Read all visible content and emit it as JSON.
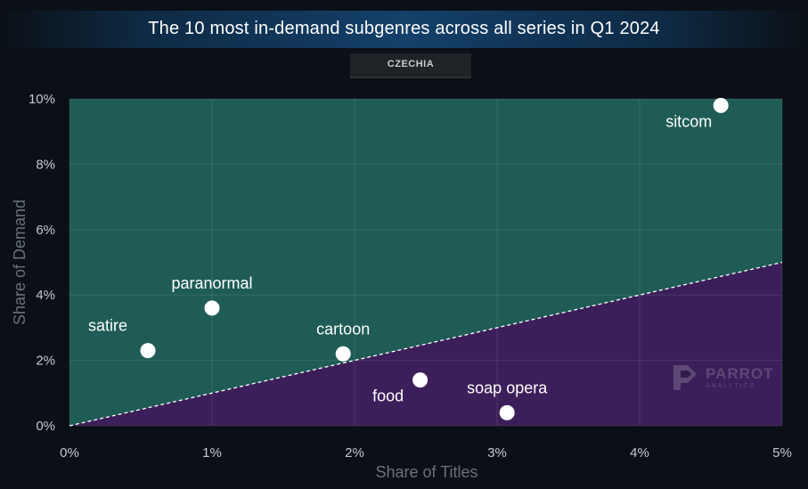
{
  "title": "The 10 most in-demand subgenres across all series in Q1 2024",
  "region": "CZECHIA",
  "watermark": {
    "name": "PARROT",
    "sub": "ANALYTICS"
  },
  "colors": {
    "above_parity": "#1f5c55",
    "below_parity": "#3c1f5a",
    "point": "#ffffff",
    "parity_line": "#ffffff"
  },
  "chart_data": {
    "type": "scatter",
    "title": "The 10 most in-demand subgenres across all series in Q1 2024",
    "subtitle": "CZECHIA",
    "xlabel": "Share of Titles",
    "ylabel": "Share of Demand",
    "xlim": [
      0,
      5
    ],
    "ylim": [
      0,
      10
    ],
    "x_ticks": [
      "0%",
      "1%",
      "2%",
      "3%",
      "4%",
      "5%"
    ],
    "y_ticks": [
      "0%",
      "2%",
      "4%",
      "6%",
      "8%",
      "10%"
    ],
    "grid": true,
    "reference_line": {
      "from": [
        0,
        0
      ],
      "to": [
        5,
        5
      ],
      "style": "dashed"
    },
    "points": [
      {
        "label": "sitcom",
        "x": 4.57,
        "y": 9.8,
        "label_pos": "below-left"
      },
      {
        "label": "paranormal",
        "x": 1.0,
        "y": 3.6,
        "label_pos": "above"
      },
      {
        "label": "satire",
        "x": 0.55,
        "y": 2.3,
        "label_pos": "above-left"
      },
      {
        "label": "cartoon",
        "x": 1.92,
        "y": 2.2,
        "label_pos": "above"
      },
      {
        "label": "food",
        "x": 2.46,
        "y": 1.4,
        "label_pos": "below-left"
      },
      {
        "label": "soap opera",
        "x": 3.07,
        "y": 0.4,
        "label_pos": "above"
      }
    ]
  }
}
